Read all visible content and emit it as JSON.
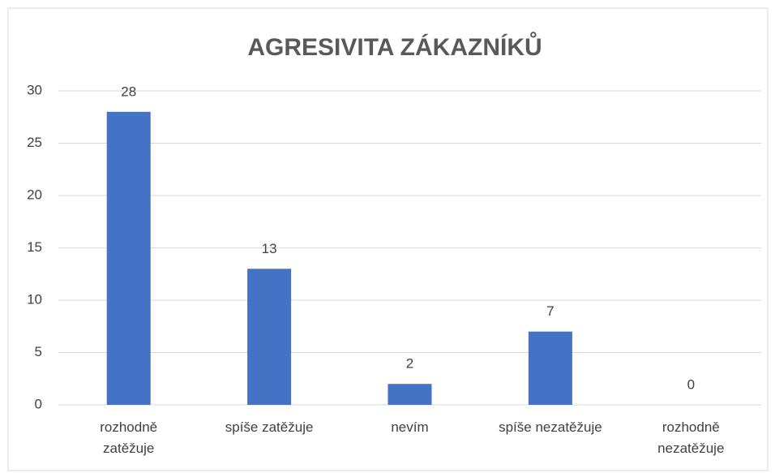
{
  "chart_data": {
    "type": "bar",
    "title": "AGRESIVITA ZÁKAZNÍKŮ",
    "categories": [
      "rozhodně\nzatěžuje",
      "spíše zatěžuje",
      "nevím",
      "spíše nezatěžuje",
      "rozhodně\nnezatěžuje"
    ],
    "values": [
      28,
      13,
      2,
      7,
      0
    ],
    "color": "#4472c4",
    "ylim": [
      0,
      30
    ],
    "yticks": [
      0,
      5,
      10,
      15,
      20,
      25,
      30
    ],
    "grid": true,
    "data_labels": true
  }
}
